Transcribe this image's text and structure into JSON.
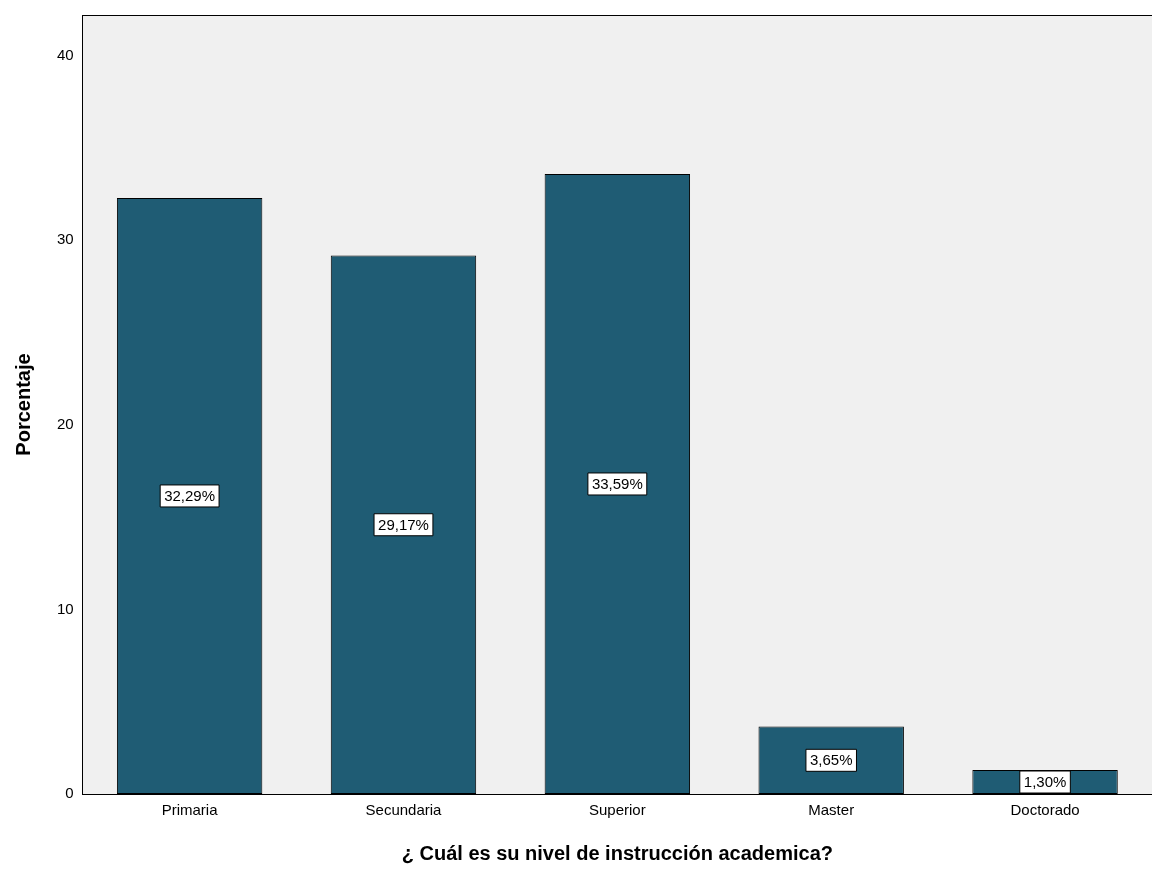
{
  "chart_data": {
    "type": "bar",
    "xlabel": "¿ Cuál es su nivel de instrucción academica?",
    "ylabel": "Porcentaje",
    "categories": [
      "Primaria",
      "Secundaria",
      "Superior",
      "Master",
      "Doctorado"
    ],
    "values": [
      32.29,
      29.17,
      33.59,
      3.65,
      1.3
    ],
    "value_labels": [
      "32,29%",
      "29,17%",
      "33,59%",
      "3,65%",
      "1,30%"
    ],
    "color": "#1f5c74",
    "ylim": [
      0,
      42.2
    ],
    "yticks": [
      0,
      10,
      20,
      30,
      40
    ],
    "grid": false,
    "legend": false
  }
}
